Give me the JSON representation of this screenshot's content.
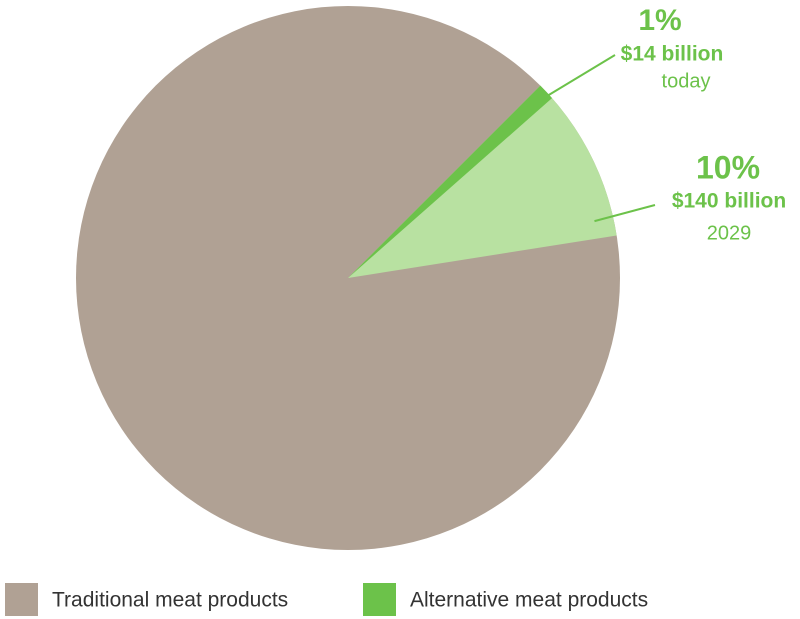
{
  "chart_data": {
    "type": "pie",
    "values": [
      10,
      1
    ],
    "value_labels": [
      "10%",
      "1%"
    ],
    "amounts": [
      "$140 billion",
      "$14 billion"
    ],
    "periods": [
      "2029",
      "today"
    ],
    "colors": [
      "#b8e1a1",
      "#6cc24a"
    ],
    "base_color": "#b0a194",
    "legend": [
      {
        "name": "Traditional meat products",
        "color": "#b0a194"
      },
      {
        "name": "Alternative meat products",
        "color": "#6cc24a"
      }
    ]
  }
}
